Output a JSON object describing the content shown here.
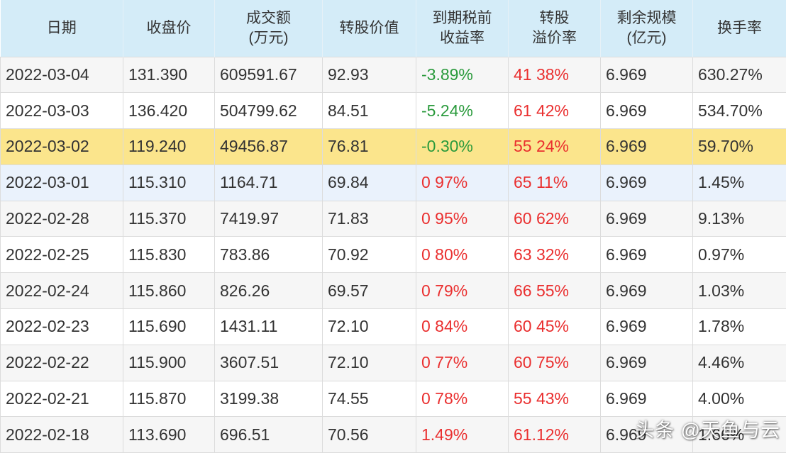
{
  "columns": [
    "日期",
    "收盘价",
    "成交额\n(万元)",
    "转股价值",
    "到期税前\n收益率",
    "转股\n溢价率",
    "剩余规模\n(亿元)",
    "换手率"
  ],
  "rows": [
    [
      "2022-03-04",
      "131.390",
      "609591.67",
      "92.93",
      "-3.89%",
      "41 38%",
      "6.969",
      "630.27%"
    ],
    [
      "2022-03-03",
      "136.420",
      "504799.62",
      "84.51",
      "-5.24%",
      "61 42%",
      "6.969",
      "534.70%"
    ],
    [
      "2022-03-02",
      "119.240",
      "49456.87",
      "76.81",
      "-0.30%",
      "55 24%",
      "6.969",
      "59.70%"
    ],
    [
      "2022-03-01",
      "115.310",
      "1164.71",
      "69.84",
      "0 97%",
      "65 11%",
      "6.969",
      "1.45%"
    ],
    [
      "2022-02-28",
      "115.370",
      "7419.97",
      "71.83",
      "0 95%",
      "60 62%",
      "6.969",
      "9.13%"
    ],
    [
      "2022-02-25",
      "115.830",
      "783.86",
      "70.92",
      "0 80%",
      "63 32%",
      "6.969",
      "0.97%"
    ],
    [
      "2022-02-24",
      "115.860",
      "826.26",
      "69.57",
      "0 79%",
      "66 55%",
      "6.969",
      "1.03%"
    ],
    [
      "2022-02-23",
      "115.690",
      "1431.11",
      "72.10",
      "0 84%",
      "60 45%",
      "6.969",
      "1.78%"
    ],
    [
      "2022-02-22",
      "115.900",
      "3607.51",
      "72.10",
      "0 77%",
      "60 75%",
      "6.969",
      "4.46%"
    ],
    [
      "2022-02-21",
      "115.870",
      "3199.38",
      "74.55",
      "0 78%",
      "55 43%",
      "6.969",
      "4.00%"
    ],
    [
      "2022-02-18",
      "113.690",
      "696.51",
      "70.56",
      "1.49%",
      "61.12%",
      "6.969",
      "1.66%"
    ]
  ],
  "watermark": "头条 @天鱼与云",
  "colors": {
    "header_bg": "#d4ecf8",
    "highlight_row": "#fbe58c",
    "light_row": "#eaf2fc",
    "alt_row": "#f6f6f6",
    "negative": "#2a9a3c",
    "positive": "#ea2f2f"
  }
}
